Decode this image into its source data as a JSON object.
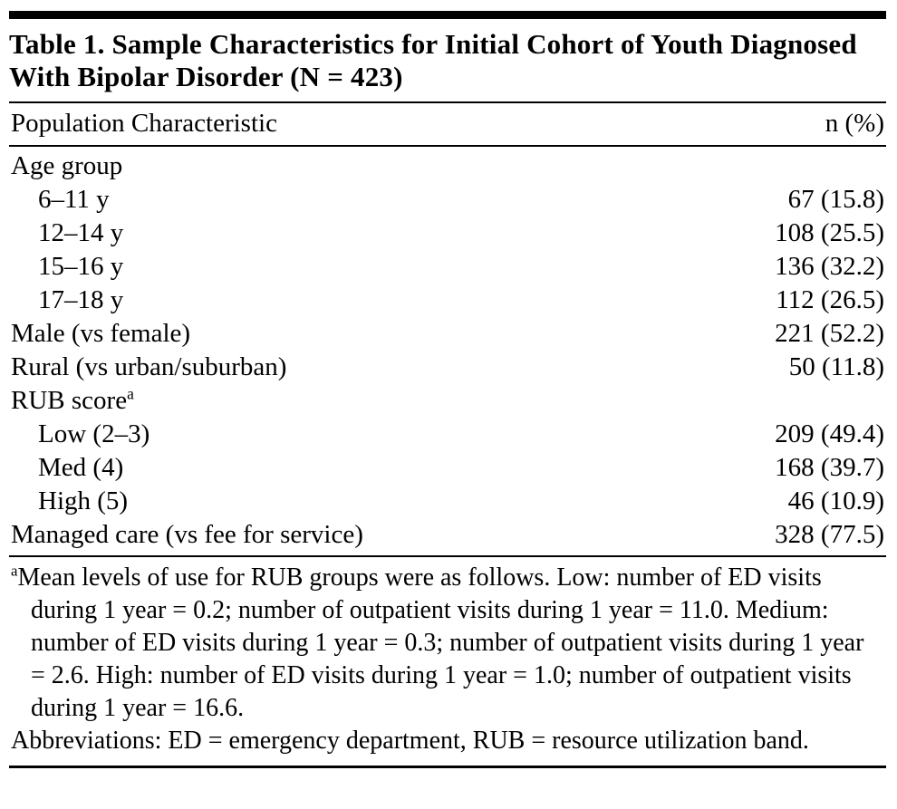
{
  "table": {
    "title": "Table 1. Sample Characteristics for Initial Cohort of Youth Diagnosed With Bipolar Disorder (N = 423)",
    "columns": [
      "Population Characteristic",
      "n (%)"
    ],
    "rows": [
      {
        "label": "Age group",
        "sup": "",
        "indent": 0,
        "value": ""
      },
      {
        "label": "6–11 y",
        "sup": "",
        "indent": 1,
        "value": "67 (15.8)"
      },
      {
        "label": "12–14 y",
        "sup": "",
        "indent": 1,
        "value": "108 (25.5)"
      },
      {
        "label": "15–16 y",
        "sup": "",
        "indent": 1,
        "value": "136 (32.2)"
      },
      {
        "label": "17–18 y",
        "sup": "",
        "indent": 1,
        "value": "112 (26.5)"
      },
      {
        "label": "Male (vs female)",
        "sup": "",
        "indent": 0,
        "value": "221 (52.2)"
      },
      {
        "label": "Rural (vs urban/suburban)",
        "sup": "",
        "indent": 0,
        "value": "50 (11.8)"
      },
      {
        "label": "RUB score",
        "sup": "a",
        "indent": 0,
        "value": ""
      },
      {
        "label": "Low (2–3)",
        "sup": "",
        "indent": 1,
        "value": "209 (49.4)"
      },
      {
        "label": "Med (4)",
        "sup": "",
        "indent": 1,
        "value": "168 (39.7)"
      },
      {
        "label": "High (5)",
        "sup": "",
        "indent": 1,
        "value": "46 (10.9)"
      },
      {
        "label": "Managed care (vs fee for service)",
        "sup": "",
        "indent": 0,
        "value": "328 (77.5)"
      }
    ],
    "footnotes": [
      {
        "marker": "a",
        "text": "Mean levels of use for RUB groups were as follows. Low: number of ED visits during 1 year = 0.2; number of outpatient visits during 1 year = 11.0. Medium: number of ED visits during 1 year = 0.3; number of outpatient visits during 1 year = 2.6. High: number of ED visits during 1 year = 1.0; number of outpatient visits during 1 year = 16.6."
      },
      {
        "marker": "",
        "text": "Abbreviations: ED = emergency department, RUB = resource utilization band."
      }
    ],
    "colors": {
      "text": "#000000",
      "background": "#ffffff",
      "rule": "#000000"
    }
  }
}
